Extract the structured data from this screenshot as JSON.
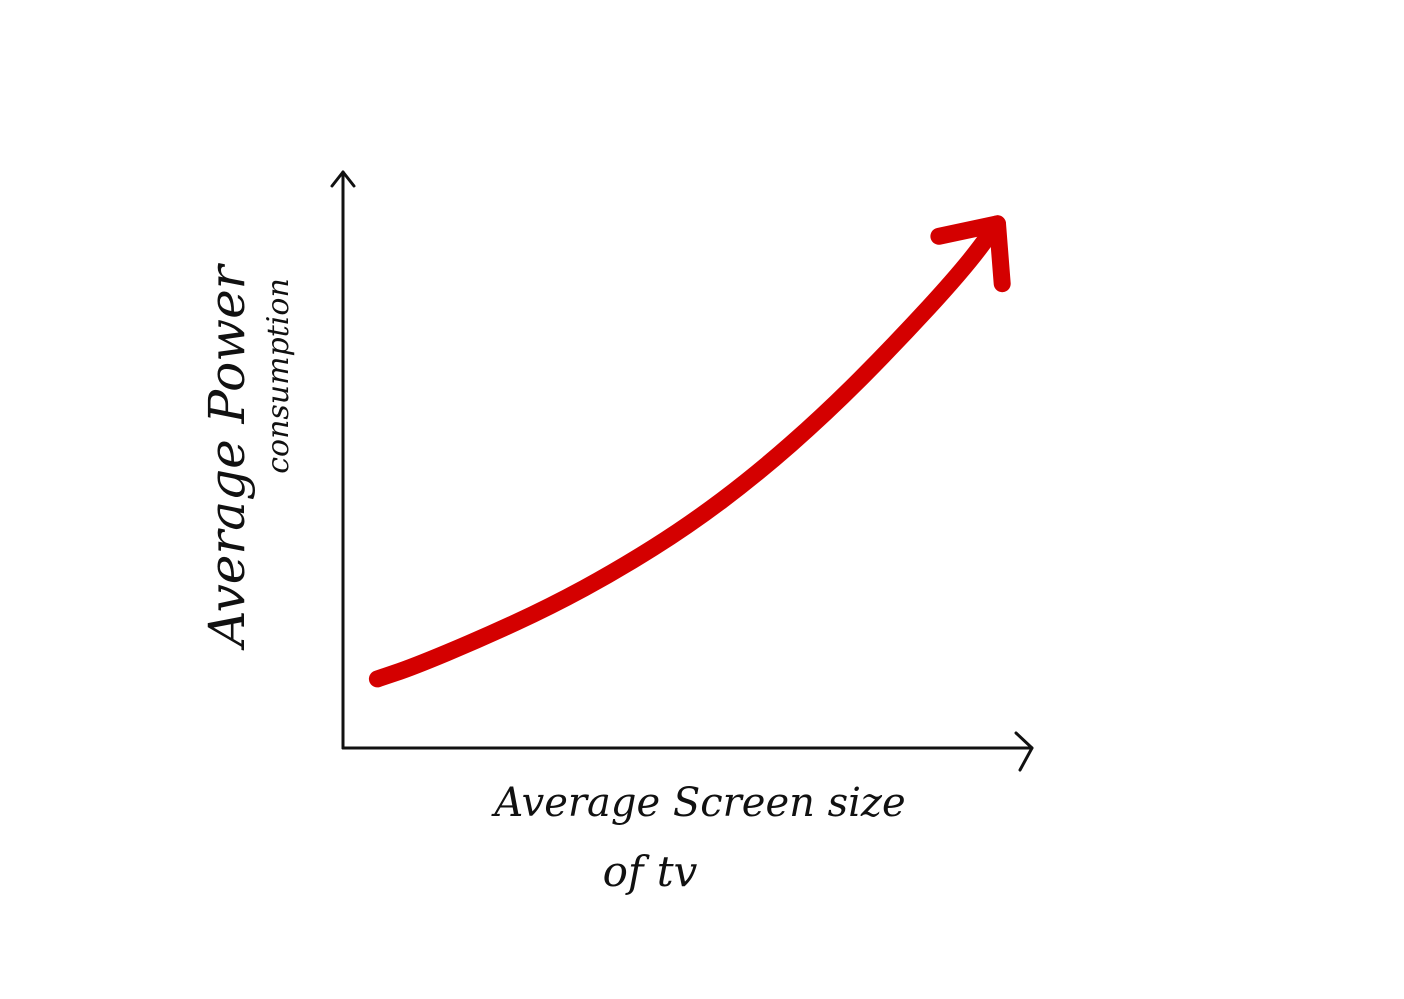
{
  "chart_data": {
    "type": "line",
    "title": "",
    "xlabel": {
      "line1": "Average Screen size",
      "line2": "of tv"
    },
    "ylabel": {
      "line1": "Average Power",
      "line2": "consumption"
    },
    "x": [
      0.05,
      0.1,
      0.2,
      0.3,
      0.4,
      0.5,
      0.6,
      0.7,
      0.8,
      0.9,
      0.95
    ],
    "series": [
      {
        "values": [
          0.12,
          0.14,
          0.19,
          0.245,
          0.31,
          0.385,
          0.475,
          0.58,
          0.7,
          0.83,
          0.91
        ]
      }
    ],
    "xlim": [
      0,
      1
    ],
    "ylim": [
      0,
      1
    ],
    "grid": false,
    "legend": "none",
    "ticks": "none",
    "arrowhead_at_end": true,
    "colors": {
      "axis": "#111111",
      "series": "#d40000",
      "background": "#ffffff"
    }
  }
}
